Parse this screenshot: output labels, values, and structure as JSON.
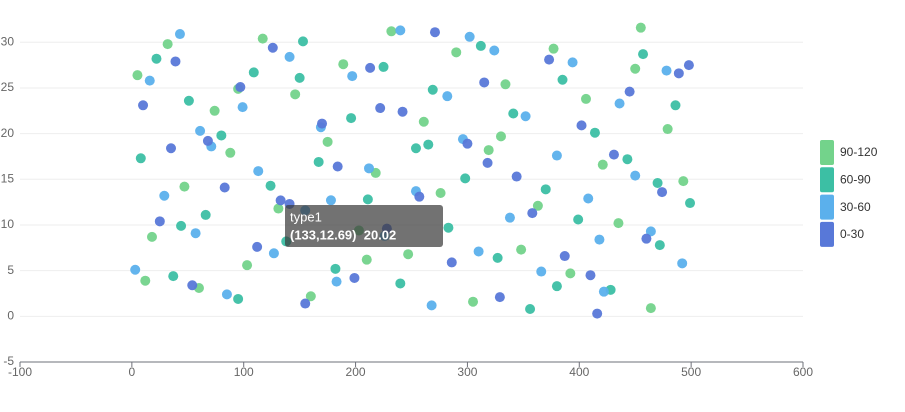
{
  "chart_data": {
    "type": "scatter",
    "xlim": [
      -100,
      600
    ],
    "xticks": [
      -100,
      0,
      100,
      200,
      300,
      400,
      500,
      600
    ],
    "ylim": [
      -5,
      32
    ],
    "yticks": [
      -5,
      0,
      5,
      10,
      15,
      20,
      25,
      30
    ],
    "grid": true,
    "legend": "right",
    "series": [
      {
        "name": "90-120",
        "color": "#73d38b",
        "x": [
          5,
          18,
          32,
          47,
          60,
          74,
          88,
          103,
          117,
          131,
          146,
          160,
          175,
          189,
          203,
          218,
          232,
          247,
          261,
          276,
          290,
          305,
          319,
          334,
          348,
          363,
          377,
          392,
          406,
          421,
          435,
          450,
          464,
          479,
          493,
          12,
          95,
          210,
          330,
          455
        ],
        "values": [
          26.4,
          8.7,
          29.8,
          14.2,
          3.1,
          22.5,
          17.9,
          5.6,
          30.4,
          11.8,
          24.3,
          2.2,
          19.1,
          27.6,
          9.4,
          15.7,
          31.2,
          6.8,
          21.3,
          13.5,
          28.9,
          1.6,
          18.2,
          25.4,
          7.3,
          12.1,
          29.3,
          4.7,
          23.8,
          16.6,
          10.2,
          27.1,
          0.9,
          20.5,
          14.8,
          3.9,
          24.9,
          6.2,
          19.7,
          31.6
        ]
      },
      {
        "name": "60-90",
        "color": "#3cbfa4",
        "x": [
          8,
          22,
          37,
          51,
          66,
          80,
          95,
          109,
          124,
          138,
          153,
          167,
          182,
          196,
          211,
          225,
          240,
          254,
          269,
          283,
          298,
          312,
          327,
          341,
          356,
          370,
          385,
          399,
          414,
          428,
          443,
          457,
          472,
          486,
          499,
          44,
          150,
          265,
          380,
          470
        ],
        "values": [
          17.3,
          28.2,
          4.4,
          23.6,
          11.1,
          19.8,
          1.9,
          26.7,
          14.3,
          8.2,
          30.1,
          16.9,
          5.2,
          21.7,
          12.8,
          27.3,
          3.6,
          18.4,
          24.8,
          9.7,
          15.1,
          29.6,
          6.4,
          22.2,
          0.8,
          13.9,
          25.9,
          10.6,
          20.1,
          2.9,
          17.2,
          28.7,
          7.8,
          23.1,
          12.4,
          9.9,
          26.1,
          18.8,
          3.3,
          14.6
        ]
      },
      {
        "name": "30-60",
        "color": "#5bb0ec",
        "x": [
          3,
          16,
          29,
          43,
          57,
          71,
          85,
          99,
          113,
          127,
          141,
          155,
          169,
          183,
          197,
          212,
          226,
          240,
          254,
          268,
          282,
          296,
          310,
          324,
          338,
          352,
          366,
          380,
          394,
          408,
          422,
          436,
          450,
          464,
          478,
          492,
          61,
          178,
          302,
          418
        ],
        "values": [
          5.1,
          25.8,
          13.2,
          30.9,
          9.1,
          18.6,
          2.4,
          22.9,
          15.9,
          6.9,
          28.4,
          11.6,
          20.7,
          3.8,
          26.3,
          16.2,
          8.8,
          31.3,
          13.7,
          1.2,
          24.1,
          19.4,
          7.1,
          29.1,
          10.8,
          21.9,
          4.9,
          17.6,
          27.8,
          12.9,
          2.7,
          23.3,
          15.4,
          9.3,
          26.9,
          5.8,
          20.3,
          12.7,
          30.6,
          8.4
        ]
      },
      {
        "name": "0-30",
        "color": "#5878d8",
        "x": [
          10,
          25,
          39,
          54,
          68,
          83,
          97,
          112,
          126,
          141,
          155,
          170,
          184,
          199,
          213,
          228,
          242,
          257,
          271,
          286,
          300,
          315,
          329,
          344,
          358,
          373,
          387,
          402,
          416,
          431,
          445,
          460,
          474,
          489,
          35,
          133,
          222,
          318,
          410,
          498
        ],
        "values": [
          23.1,
          10.4,
          27.9,
          3.4,
          19.2,
          14.1,
          25.1,
          7.6,
          29.4,
          12.3,
          1.4,
          21.1,
          16.4,
          4.2,
          27.2,
          9.6,
          22.4,
          13.1,
          31.1,
          5.9,
          18.9,
          25.6,
          2.1,
          15.3,
          11.3,
          28.1,
          6.6,
          20.9,
          0.3,
          17.7,
          24.6,
          8.5,
          13.6,
          26.6,
          18.4,
          12.69,
          22.8,
          16.8,
          4.5,
          27.5
        ]
      }
    ],
    "tooltip": {
      "title": "type1",
      "text": "(133,12.69)  20.02"
    }
  }
}
